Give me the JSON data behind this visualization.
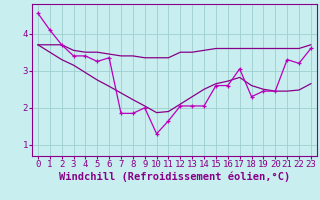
{
  "xlabel": "Windchill (Refroidissement éolien,°C)",
  "xlim": [
    -0.5,
    23.5
  ],
  "ylim": [
    0.7,
    4.8
  ],
  "yticks": [
    1,
    2,
    3,
    4
  ],
  "xticks": [
    0,
    1,
    2,
    3,
    4,
    5,
    6,
    7,
    8,
    9,
    10,
    11,
    12,
    13,
    14,
    15,
    16,
    17,
    18,
    19,
    20,
    21,
    22,
    23
  ],
  "background_color": "#c8eef0",
  "grid_color": "#9ecece",
  "line_color": "#880088",
  "line_color_jagged": "#bb00bb",
  "series_jagged": [
    4.55,
    4.1,
    3.7,
    3.4,
    3.4,
    3.25,
    3.35,
    1.85,
    1.85,
    2.0,
    1.3,
    1.65,
    2.05,
    2.05,
    2.05,
    2.6,
    2.6,
    3.05,
    2.3,
    2.45,
    2.45,
    3.3,
    3.2,
    3.6
  ],
  "series_flat": [
    3.7,
    3.7,
    3.7,
    3.55,
    3.5,
    3.5,
    3.45,
    3.4,
    3.4,
    3.35,
    3.35,
    3.35,
    3.5,
    3.5,
    3.55,
    3.6,
    3.6,
    3.6,
    3.6,
    3.6,
    3.6,
    3.6,
    3.6,
    3.7
  ],
  "series_smooth": [
    3.7,
    3.5,
    3.3,
    3.15,
    2.95,
    2.75,
    2.58,
    2.4,
    2.22,
    2.05,
    1.87,
    1.9,
    2.1,
    2.3,
    2.5,
    2.65,
    2.72,
    2.82,
    2.6,
    2.5,
    2.45,
    2.45,
    2.48,
    2.65
  ],
  "tick_fontsize": 6.5,
  "xlabel_fontsize": 7.5,
  "fig_width": 3.2,
  "fig_height": 2.0,
  "dpi": 100
}
